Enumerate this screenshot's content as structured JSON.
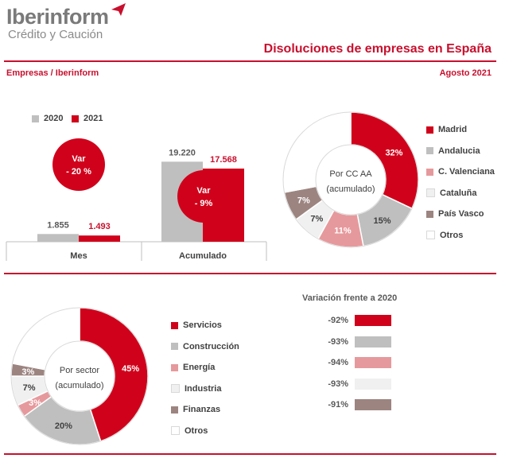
{
  "header": {
    "brand": "Iberinform",
    "brand_sub": "Crédito y Caución",
    "title": "Disoluciones de empresas en España",
    "source": "Empresas / Iberinform",
    "date": "Agosto 2021"
  },
  "colors": {
    "red": "#d0021b",
    "gray": "#bfbfbf",
    "pink": "#e6999c",
    "lightgray": "#f0f0f0",
    "brown": "#9c8480",
    "white": "#ffffff"
  },
  "chart_data": [
    {
      "type": "bar",
      "categories": [
        "Mes",
        "Acumulado"
      ],
      "series": [
        {
          "name": "2020",
          "values": [
            1855,
            19220
          ],
          "labels": [
            "1.855",
            "19.220"
          ],
          "color": "#bfbfbf"
        },
        {
          "name": "2021",
          "values": [
            1493,
            17568
          ],
          "labels": [
            "1.493",
            "17.568"
          ],
          "color": "#d0021b"
        }
      ],
      "annotations": [
        {
          "category": "Mes",
          "line1": "Var",
          "line2": "- 20 %"
        },
        {
          "category": "Acumulado",
          "line1": "Var",
          "line2": "- 9%"
        }
      ],
      "legend": "top"
    },
    {
      "type": "pie",
      "center_label": [
        "Por CC AA",
        "(acumulado)"
      ],
      "slices": [
        {
          "name": "Madrid",
          "value": 32,
          "label": "32%",
          "color": "#d0021b"
        },
        {
          "name": "Andalucia",
          "value": 15,
          "label": "15%",
          "color": "#bfbfbf"
        },
        {
          "name": "C. Valenciana",
          "value": 11,
          "label": "11%",
          "color": "#e6999c"
        },
        {
          "name": "Cataluña",
          "value": 7,
          "label": "7%",
          "color": "#f0f0f0"
        },
        {
          "name": "País Vasco",
          "value": 7,
          "label": "7%",
          "color": "#9c8480"
        },
        {
          "name": "Otros",
          "value": 28,
          "label": "",
          "color": "#ffffff"
        }
      ],
      "legend": "right"
    },
    {
      "type": "pie",
      "center_label": [
        "Por sector",
        "(acumulado)"
      ],
      "slices": [
        {
          "name": "Servicios",
          "value": 45,
          "label": "45%",
          "color": "#d0021b"
        },
        {
          "name": "Construcción",
          "value": 20,
          "label": "20%",
          "color": "#bfbfbf"
        },
        {
          "name": "Energía",
          "value": 3,
          "label": "3%",
          "color": "#e6999c"
        },
        {
          "name": "Industria",
          "value": 7,
          "label": "7%",
          "color": "#f0f0f0"
        },
        {
          "name": "Finanzas",
          "value": 3,
          "label": "3%",
          "color": "#9c8480"
        },
        {
          "name": "Otros",
          "value": 22,
          "label": "",
          "color": "#ffffff"
        }
      ],
      "legend": "right"
    },
    {
      "type": "table",
      "title": "Variación frente a 2020",
      "rows": [
        {
          "label": "-92%",
          "value": -92,
          "color": "#d0021b"
        },
        {
          "label": "-93%",
          "value": -93,
          "color": "#bfbfbf"
        },
        {
          "label": "-94%",
          "value": -94,
          "color": "#e6999c"
        },
        {
          "label": "-93%",
          "value": -93,
          "color": "#f0f0f0"
        },
        {
          "label": "-91%",
          "value": -91,
          "color": "#9c8480"
        }
      ]
    }
  ]
}
